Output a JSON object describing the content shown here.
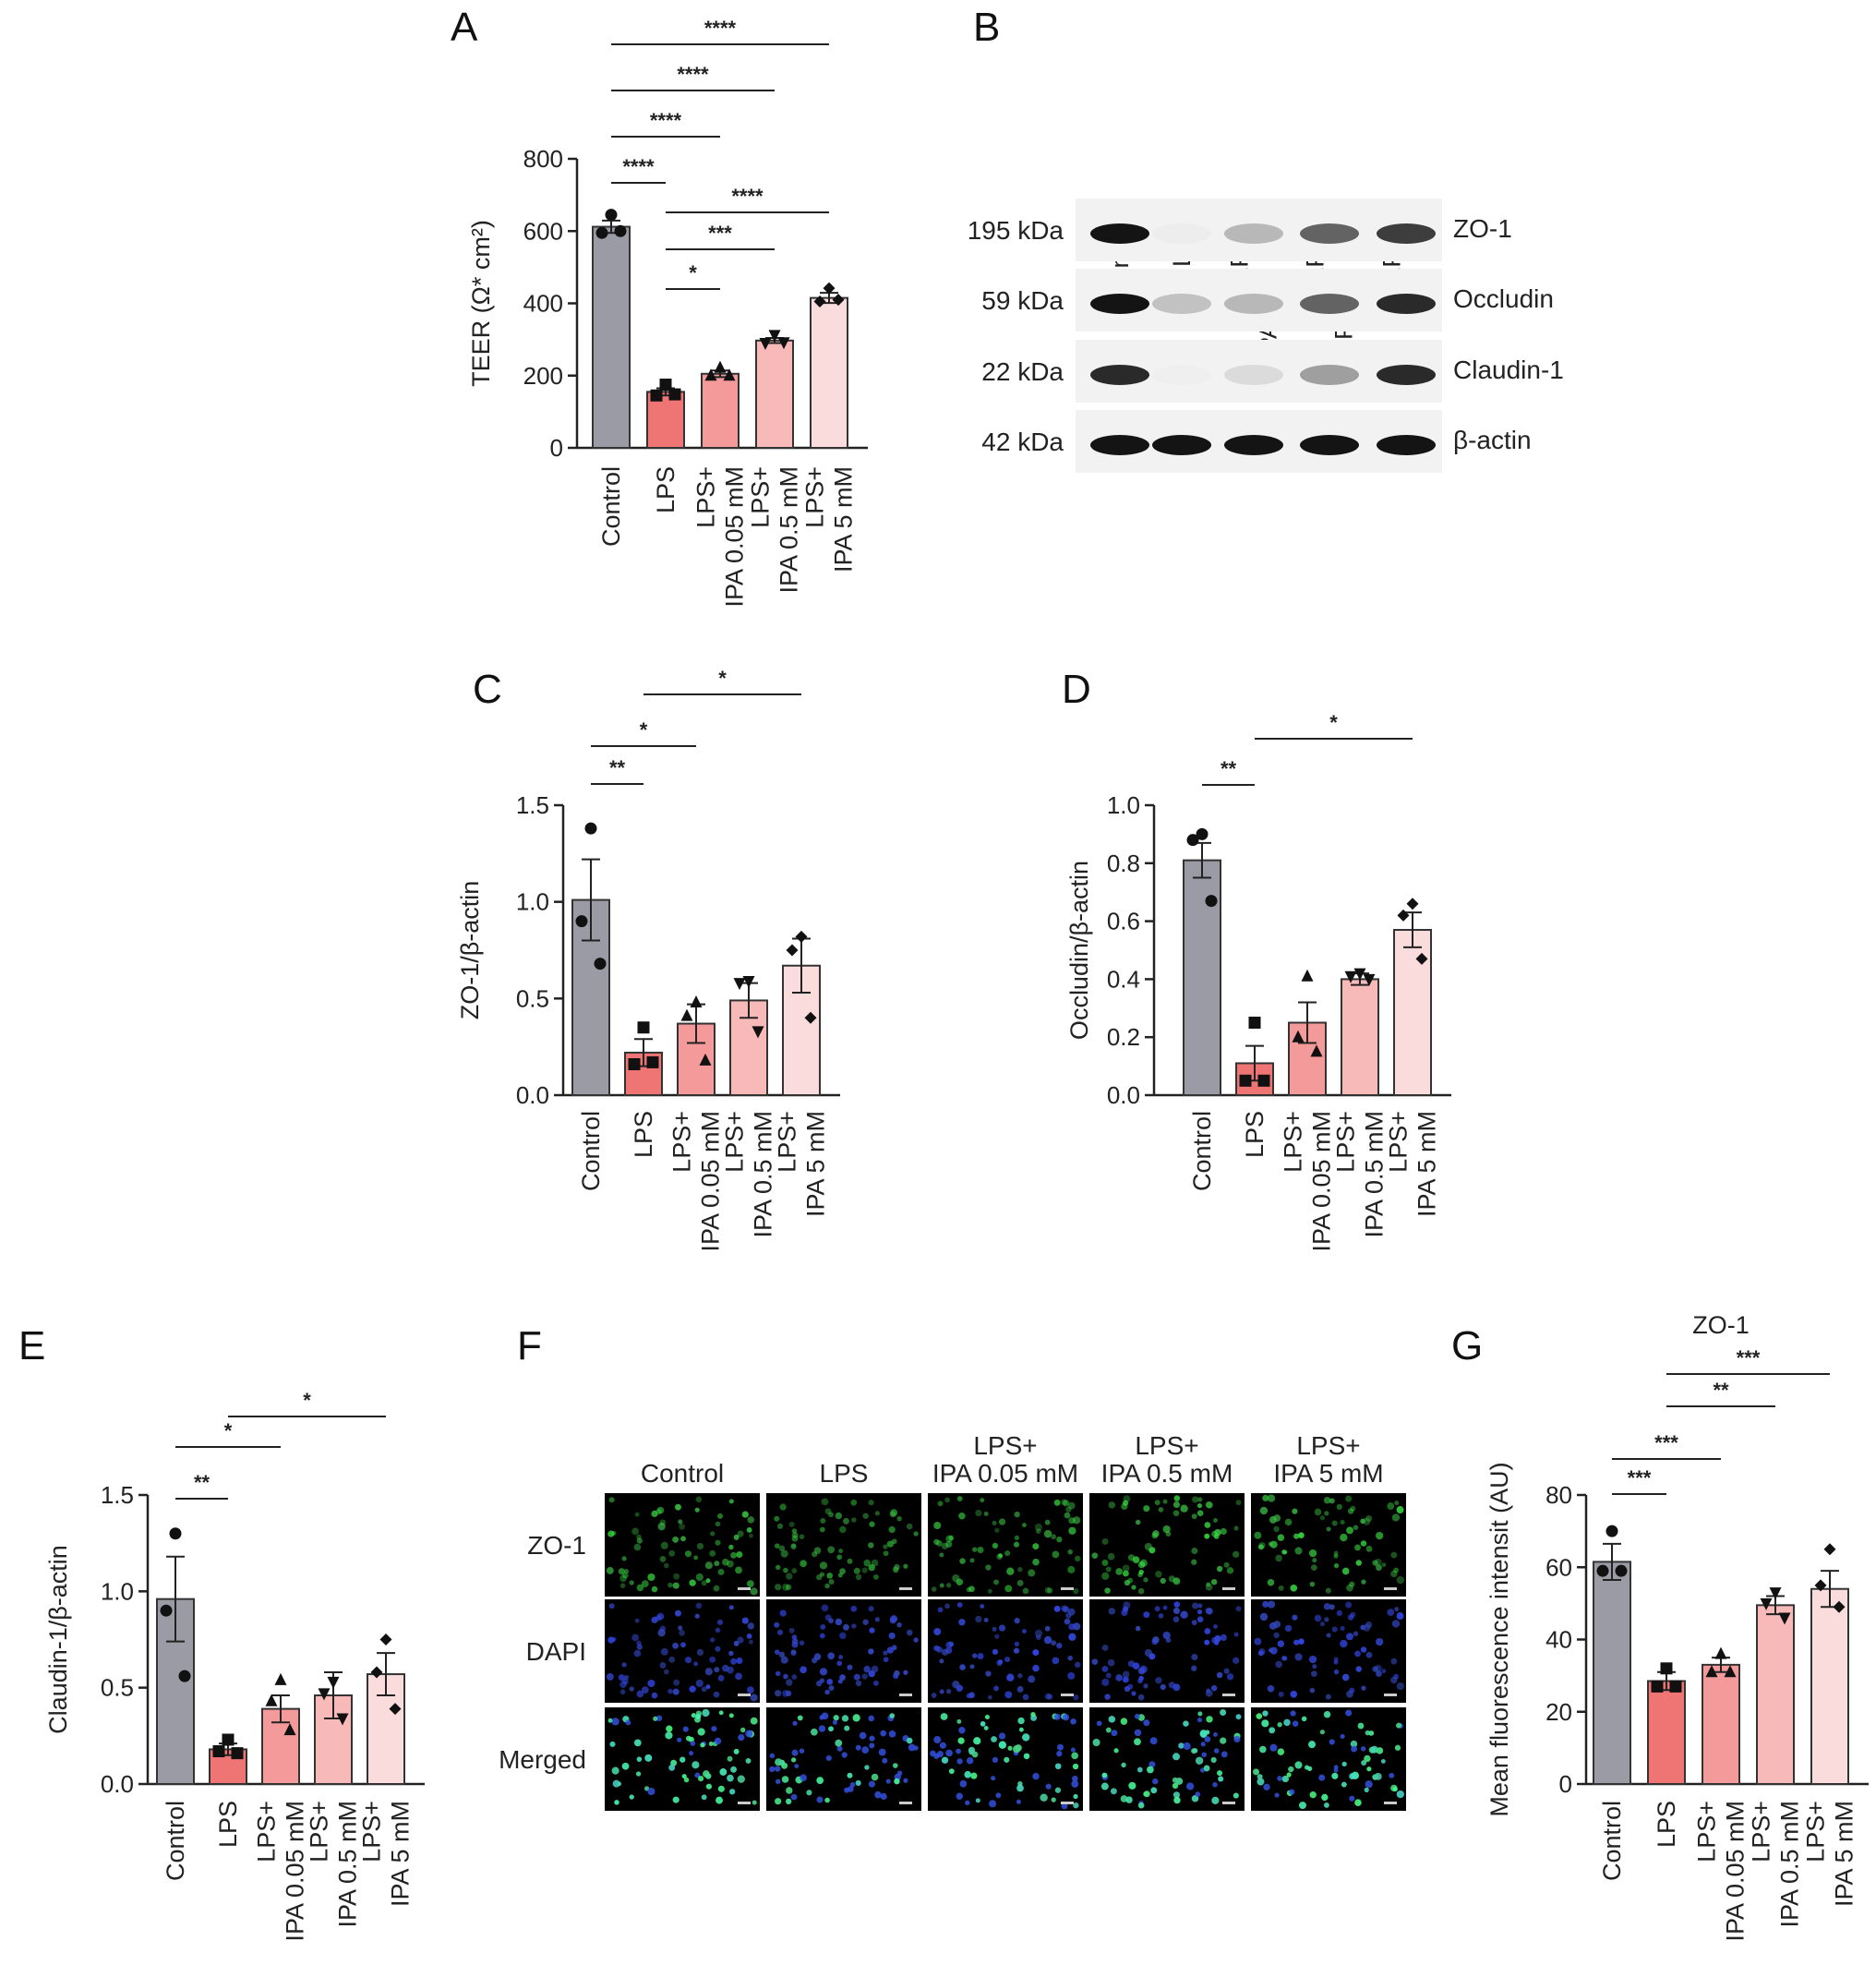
{
  "colors": {
    "group_fills": [
      "#9b9ba6",
      "#ef7575",
      "#f49a9a",
      "#f8b9b9",
      "#fbdcdc"
    ],
    "outline": "#333333",
    "zo1_green": "#33dd44",
    "dapi_blue": "#3344cc"
  },
  "markers": [
    "circle",
    "square",
    "triangle",
    "triangle-down",
    "diamond"
  ],
  "chart_data": [
    {
      "panel": "A",
      "type": "bar",
      "categories": [
        "Control",
        "LPS",
        "LPS+\nIPA 0.05 mM",
        "LPS+\nIPA 0.5 mM",
        "LPS+\nIPA 5 mM"
      ],
      "values": [
        612,
        155,
        205,
        297,
        415
      ],
      "errors": [
        17,
        10,
        9,
        7,
        14
      ],
      "points": [
        [
          645,
          595,
          600
        ],
        [
          175,
          145,
          148
        ],
        [
          222,
          200,
          200
        ],
        [
          312,
          290,
          292
        ],
        [
          442,
          405,
          410
        ]
      ],
      "ylabel": "TEER (Ω* cm²)",
      "ylim": [
        0,
        800
      ],
      "yticks": [
        "0",
        "200",
        "400",
        "600",
        "800"
      ],
      "significance": [
        {
          "from": 0,
          "to": 4,
          "label": "****"
        },
        {
          "from": 0,
          "to": 3,
          "label": "****"
        },
        {
          "from": 0,
          "to": 2,
          "label": "****"
        },
        {
          "from": 0,
          "to": 1,
          "label": "****"
        },
        {
          "from": 1,
          "to": 4,
          "label": "****"
        },
        {
          "from": 1,
          "to": 3,
          "label": "***"
        },
        {
          "from": 1,
          "to": 2,
          "label": "*"
        }
      ]
    },
    {
      "panel": "C",
      "type": "bar",
      "categories": [
        "Control",
        "LPS",
        "LPS+\nIPA 0.05 mM",
        "LPS+\nIPA 0.5 mM",
        "LPS+\nIPA 5 mM"
      ],
      "values": [
        1.01,
        0.22,
        0.37,
        0.49,
        0.67
      ],
      "errors": [
        0.21,
        0.07,
        0.1,
        0.09,
        0.14
      ],
      "points": [
        [
          1.38,
          0.9,
          0.68
        ],
        [
          0.35,
          0.16,
          0.17
        ],
        [
          0.48,
          0.41,
          0.18
        ],
        [
          0.59,
          0.58,
          0.33
        ],
        [
          0.82,
          0.75,
          0.4
        ]
      ],
      "ylabel": "ZO-1/β-actin",
      "ylim": [
        0,
        1.5
      ],
      "yticks": [
        "0.0",
        "0.5",
        "1.0",
        "1.5"
      ],
      "significance": [
        {
          "from": 1,
          "to": 4,
          "label": "*"
        },
        {
          "from": 0,
          "to": 2,
          "label": "*"
        },
        {
          "from": 0,
          "to": 1,
          "label": "**"
        }
      ]
    },
    {
      "panel": "D",
      "type": "bar",
      "categories": [
        "Control",
        "LPS",
        "LPS+\nIPA 0.05 mM",
        "LPS+\nIPA 0.5 mM",
        "LPS+\nIPA 5 mM"
      ],
      "values": [
        0.81,
        0.11,
        0.25,
        0.4,
        0.57
      ],
      "errors": [
        0.06,
        0.06,
        0.07,
        0.02,
        0.06
      ],
      "points": [
        [
          0.9,
          0.88,
          0.67
        ],
        [
          0.25,
          0.05,
          0.05
        ],
        [
          0.41,
          0.2,
          0.15
        ],
        [
          0.42,
          0.41,
          0.4
        ],
        [
          0.66,
          0.62,
          0.47
        ]
      ],
      "ylabel": "Occludin/β-actin",
      "ylim": [
        0,
        1.0
      ],
      "yticks": [
        "0.0",
        "0.2",
        "0.4",
        "0.6",
        "0.8",
        "1.0"
      ],
      "significance": [
        {
          "from": 1,
          "to": 4,
          "label": "*"
        },
        {
          "from": 0,
          "to": 1,
          "label": "**"
        }
      ]
    },
    {
      "panel": "E",
      "type": "bar",
      "categories": [
        "Control",
        "LPS",
        "LPS+\nIPA 0.05 mM",
        "LPS+\nIPA 0.5 mM",
        "LPS+\nIPA 5 mM"
      ],
      "values": [
        0.96,
        0.18,
        0.39,
        0.46,
        0.57
      ],
      "errors": [
        0.22,
        0.03,
        0.07,
        0.12,
        0.11
      ],
      "points": [
        [
          1.3,
          0.9,
          0.56
        ],
        [
          0.23,
          0.17,
          0.16
        ],
        [
          0.54,
          0.43,
          0.28
        ],
        [
          0.53,
          0.47,
          0.34
        ],
        [
          0.75,
          0.58,
          0.39
        ]
      ],
      "ylabel": "Claudin-1/β-actin",
      "ylim": [
        0,
        1.5
      ],
      "yticks": [
        "0.0",
        "0.5",
        "1.0",
        "1.5"
      ],
      "significance": [
        {
          "from": 1,
          "to": 4,
          "label": "*"
        },
        {
          "from": 0,
          "to": 2,
          "label": "*"
        },
        {
          "from": 0,
          "to": 1,
          "label": "**"
        }
      ]
    },
    {
      "panel": "G",
      "type": "bar",
      "title": "ZO-1",
      "categories": [
        "Control",
        "LPS",
        "LPS+\nIPA 0.05 mM",
        "LPS+\nIPA 0.5 mM",
        "LPS+\nIPA 5 mM"
      ],
      "values": [
        61.5,
        28.5,
        33,
        49.5,
        54
      ],
      "errors": [
        5,
        2.5,
        2,
        2.5,
        5
      ],
      "points": [
        [
          70,
          59,
          59
        ],
        [
          32,
          27,
          27
        ],
        [
          36,
          31,
          31
        ],
        [
          53,
          50,
          46
        ],
        [
          65,
          55,
          49
        ]
      ],
      "ylabel": "Mean fluorescence intensit (AU)",
      "ylim": [
        0,
        80
      ],
      "yticks": [
        "0",
        "20",
        "40",
        "60",
        "80"
      ],
      "significance": [
        {
          "from": 1,
          "to": 4,
          "label": "***"
        },
        {
          "from": 1,
          "to": 3,
          "label": "**"
        },
        {
          "from": 0,
          "to": 2,
          "label": "***"
        },
        {
          "from": 0,
          "to": 1,
          "label": "***"
        }
      ]
    }
  ],
  "blot": {
    "panel": "B",
    "lanes": [
      "Control",
      "LPS",
      "LPS+\nIPA 0.05 mM",
      "LPS+\nIPA 0.5 mM",
      "LPS+\nIPA 5 mM"
    ],
    "rows": [
      {
        "kda": "195 kDa",
        "protein": "ZO-1",
        "intensity": [
          1.0,
          0.12,
          0.5,
          0.8,
          0.9
        ]
      },
      {
        "kda": "59 kDa",
        "protein": "Occludin",
        "intensity": [
          1.0,
          0.45,
          0.5,
          0.8,
          0.95
        ]
      },
      {
        "kda": "22 kDa",
        "protein": "Claudin-1",
        "intensity": [
          0.95,
          0.05,
          0.3,
          0.6,
          0.95
        ]
      },
      {
        "kda": "42 kDa",
        "protein": "β-actin",
        "intensity": [
          1.0,
          1.0,
          1.0,
          1.0,
          1.0
        ]
      }
    ]
  },
  "if_panel": {
    "panel": "F",
    "columns": [
      "Control",
      "LPS",
      "LPS+\nIPA 0.05 mM",
      "LPS+\nIPA 0.5 mM",
      "LPS+\nIPA 5 mM"
    ],
    "rows": [
      "ZO-1",
      "DAPI",
      "Merged"
    ],
    "zo1_brightness": [
      0.8,
      0.45,
      0.55,
      0.75,
      0.8
    ]
  }
}
